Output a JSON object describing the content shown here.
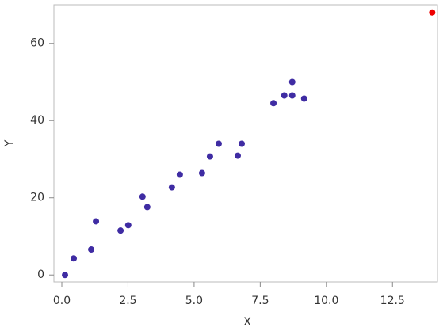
{
  "chart_data": {
    "type": "scatter",
    "x_label": "X",
    "y_label": "Y",
    "series": [
      {
        "color": "#3f2ca3",
        "x": [
          0.12,
          0.45,
          1.11,
          1.29,
          2.22,
          2.51,
          3.05,
          3.23,
          4.16,
          4.46,
          5.3,
          5.6,
          5.93,
          6.65,
          6.8,
          8.0,
          8.41,
          8.71,
          8.71,
          9.16
        ],
        "values": [
          0,
          4.3,
          6.6,
          13.9,
          11.5,
          12.9,
          20.3,
          17.6,
          22.7,
          26.0,
          26.4,
          30.7,
          34.0,
          30.9,
          34.0,
          44.5,
          46.5,
          50.0,
          46.5,
          45.7
        ]
      },
      {
        "color": "#ee0000",
        "x": [
          14.0
        ],
        "values": [
          68.0
        ]
      }
    ],
    "xlim": [
      -0.3,
      14.2
    ],
    "ylim": [
      -1.8,
      70
    ],
    "xticks": [
      {
        "value": 0,
        "label": "0.0"
      },
      {
        "value": 2.5,
        "label": "2.5"
      },
      {
        "value": 5,
        "label": "5.0"
      },
      {
        "value": 7.5,
        "label": "7.5"
      },
      {
        "value": 10,
        "label": "10.0"
      },
      {
        "value": 12.5,
        "label": "12.5"
      }
    ],
    "yticks": [
      0,
      20,
      40,
      60
    ],
    "grid": false
  }
}
